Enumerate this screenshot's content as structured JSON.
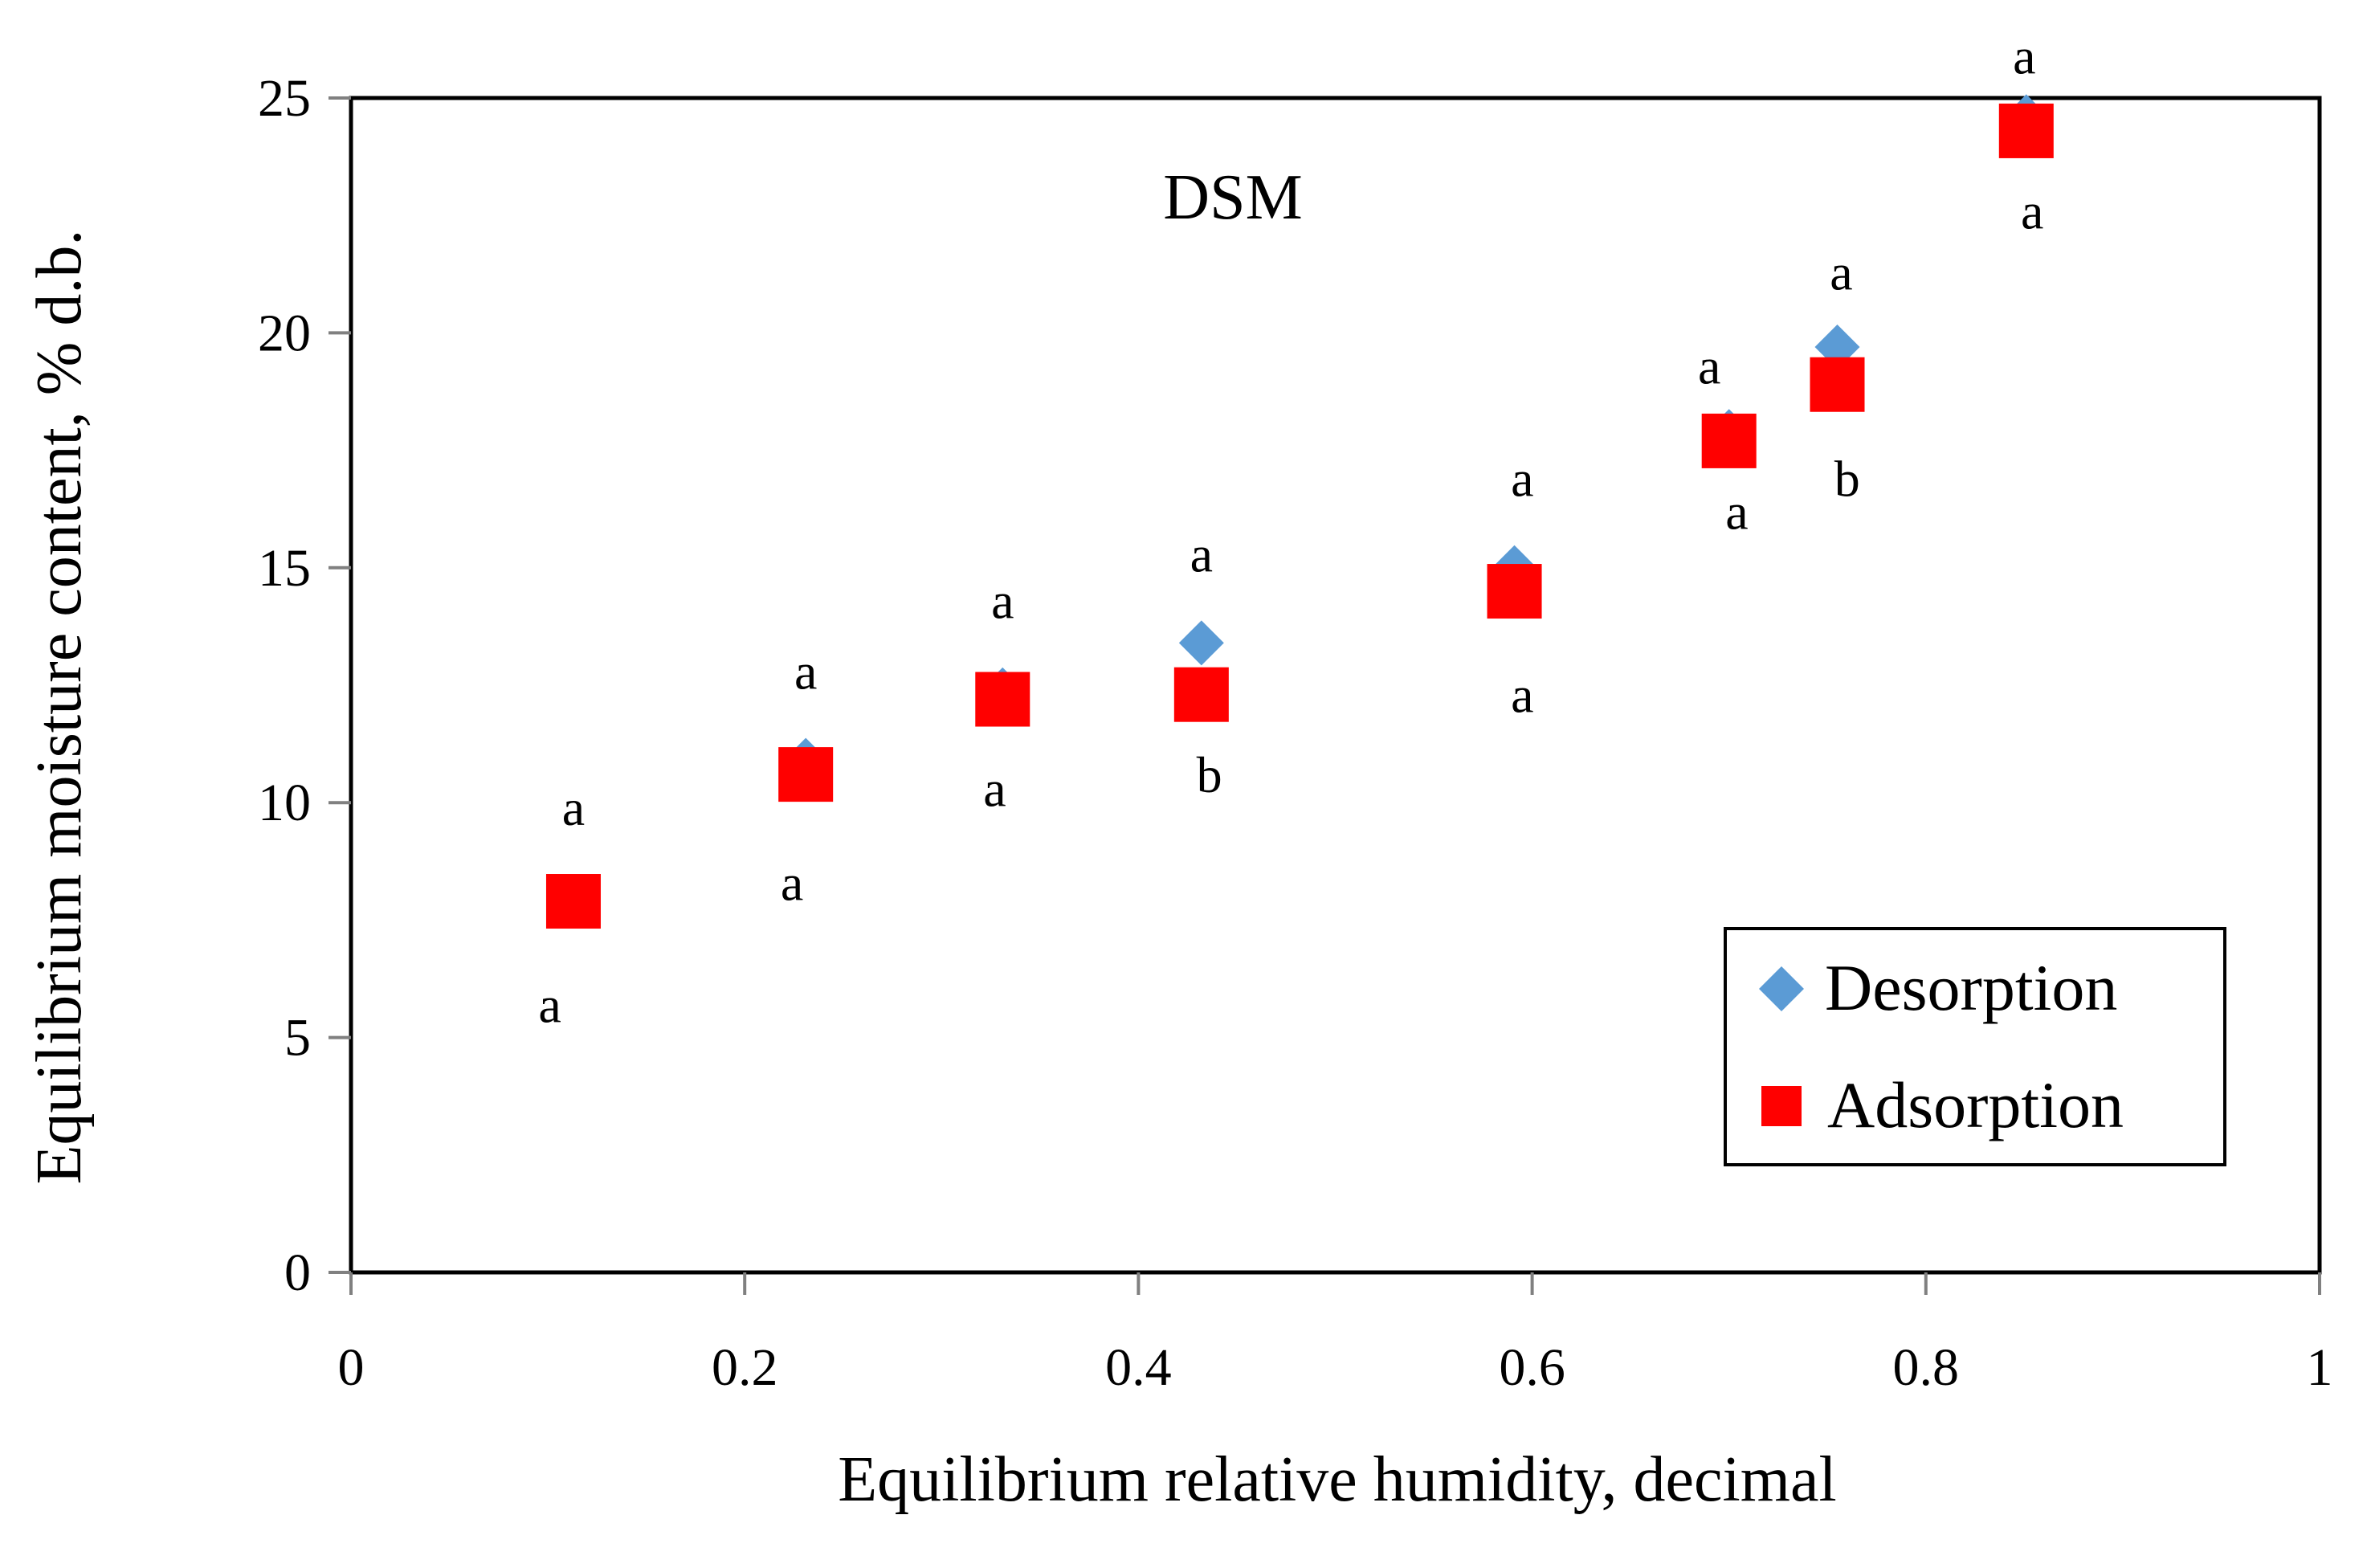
{
  "colors": {
    "desorption": "#5B9BD5",
    "adsorption": "#FF0000",
    "axis": "#000000",
    "tick": "#808080"
  },
  "chart_data": {
    "type": "scatter",
    "title": "DSM",
    "xlabel": "Equilibrium relative humidity, decimal",
    "ylabel": "Equilibrium moisture content, % d.b.",
    "xlim": [
      0,
      1
    ],
    "ylim": [
      0,
      25
    ],
    "xticks": [
      0,
      0.2,
      0.4,
      0.6,
      0.8,
      1
    ],
    "xtick_labels": [
      "0",
      "0.2",
      "0.4",
      "0.6",
      "0.8",
      "1"
    ],
    "yticks": [
      0,
      5,
      10,
      15,
      20,
      25
    ],
    "ytick_labels": [
      "0",
      "5",
      "10",
      "15",
      "20",
      "25"
    ],
    "grid": false,
    "legend_position": "bottom-right",
    "series": [
      {
        "name": "Desorption",
        "marker": "diamond",
        "points": [
          {
            "x": 0.113,
            "y": 8.0
          },
          {
            "x": 0.231,
            "y": 10.9
          },
          {
            "x": 0.331,
            "y": 12.4
          },
          {
            "x": 0.432,
            "y": 13.4
          },
          {
            "x": 0.591,
            "y": 15.0
          },
          {
            "x": 0.7,
            "y": 17.9
          },
          {
            "x": 0.755,
            "y": 19.7
          },
          {
            "x": 0.851,
            "y": 24.6
          }
        ]
      },
      {
        "name": "Adsorption",
        "marker": "square",
        "points": [
          {
            "x": 0.113,
            "y": 7.9
          },
          {
            "x": 0.231,
            "y": 10.6
          },
          {
            "x": 0.331,
            "y": 12.2
          },
          {
            "x": 0.432,
            "y": 12.3
          },
          {
            "x": 0.591,
            "y": 14.5
          },
          {
            "x": 0.7,
            "y": 17.7
          },
          {
            "x": 0.755,
            "y": 18.9
          },
          {
            "x": 0.851,
            "y": 24.3
          }
        ]
      }
    ],
    "annotations": [
      {
        "text": "a",
        "x": 0.113,
        "y": 9.9
      },
      {
        "text": "a",
        "x": 0.101,
        "y": 5.7
      },
      {
        "text": "a",
        "x": 0.231,
        "y": 12.8
      },
      {
        "text": "a",
        "x": 0.224,
        "y": 8.3
      },
      {
        "text": "a",
        "x": 0.331,
        "y": 14.3
      },
      {
        "text": "a",
        "x": 0.327,
        "y": 10.3
      },
      {
        "text": "a",
        "x": 0.432,
        "y": 15.3
      },
      {
        "text": "b",
        "x": 0.436,
        "y": 10.6
      },
      {
        "text": "a",
        "x": 0.595,
        "y": 16.9
      },
      {
        "text": "a",
        "x": 0.595,
        "y": 12.3
      },
      {
        "text": "a",
        "x": 0.69,
        "y": 19.3
      },
      {
        "text": "a",
        "x": 0.704,
        "y": 16.2
      },
      {
        "text": "a",
        "x": 0.757,
        "y": 21.3
      },
      {
        "text": "b",
        "x": 0.76,
        "y": 16.9
      },
      {
        "text": "a",
        "x": 0.85,
        "y": 25.9
      },
      {
        "text": "a",
        "x": 0.854,
        "y": 22.6
      }
    ]
  }
}
